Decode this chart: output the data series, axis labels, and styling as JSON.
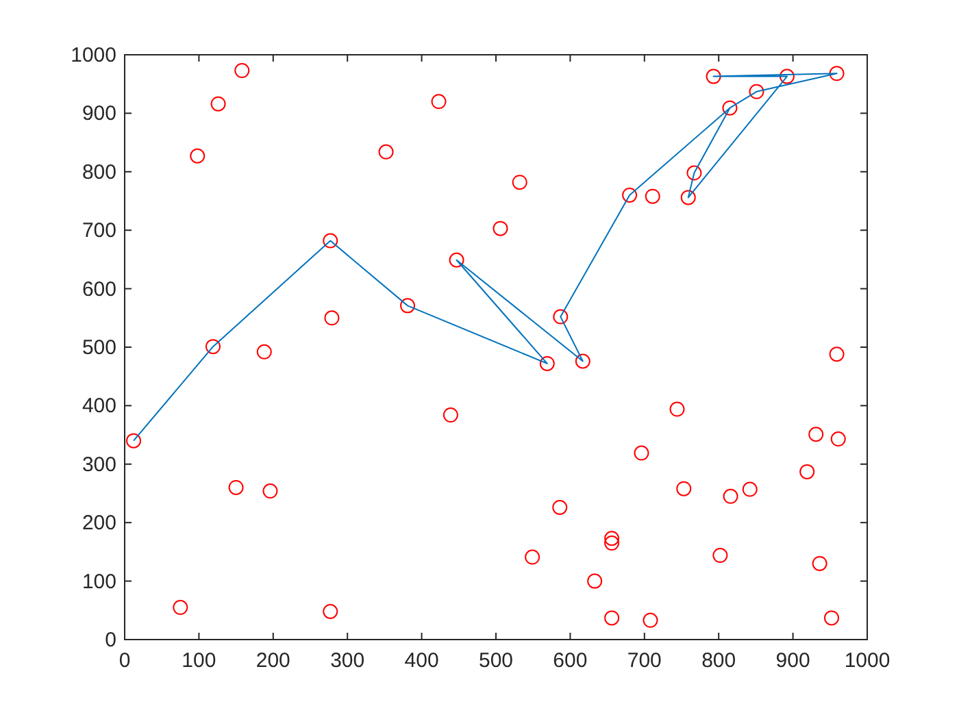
{
  "chart_data": {
    "type": "scatter",
    "xlim": [
      0,
      1000
    ],
    "ylim": [
      0,
      1000
    ],
    "xticks": [
      0,
      100,
      200,
      300,
      400,
      500,
      600,
      700,
      800,
      900,
      1000
    ],
    "yticks": [
      0,
      100,
      200,
      300,
      400,
      500,
      600,
      700,
      800,
      900,
      1000
    ],
    "grid": false,
    "series": [
      {
        "marker": "circle",
        "color": "#ff0000",
        "x": [
          158,
          126,
          98,
          423,
          352,
          277,
          447,
          381,
          279,
          119,
          188,
          793,
          892,
          959,
          851,
          815,
          532,
          506,
          680,
          711,
          759,
          767,
          587,
          569,
          617,
          959,
          744,
          696,
          931,
          961,
          919,
          753,
          816,
          842,
          586,
          656,
          656,
          549,
          802,
          936,
          633,
          656,
          708,
          952,
          12,
          439,
          150,
          196,
          75,
          277
        ],
        "values": [
          973,
          916,
          827,
          920,
          834,
          682,
          649,
          571,
          550,
          501,
          492,
          963,
          963,
          968,
          937,
          909,
          782,
          703,
          760,
          758,
          756,
          798,
          552,
          472,
          476,
          488,
          394,
          319,
          351,
          343,
          287,
          258,
          245,
          257,
          226,
          173,
          165,
          141,
          144,
          130,
          100,
          37,
          33,
          37,
          340,
          384,
          260,
          254,
          55,
          48
        ]
      },
      {
        "type": "line",
        "marker": "none",
        "line_style": "solid",
        "color": "#0072bd",
        "x": [
          12,
          119,
          277,
          381,
          569,
          447,
          617,
          587,
          680,
          815,
          851,
          959,
          793,
          892,
          759,
          767,
          815
        ],
        "values": [
          340,
          501,
          682,
          571,
          472,
          649,
          476,
          552,
          760,
          909,
          937,
          968,
          963,
          963,
          756,
          798,
          909
        ]
      }
    ]
  }
}
